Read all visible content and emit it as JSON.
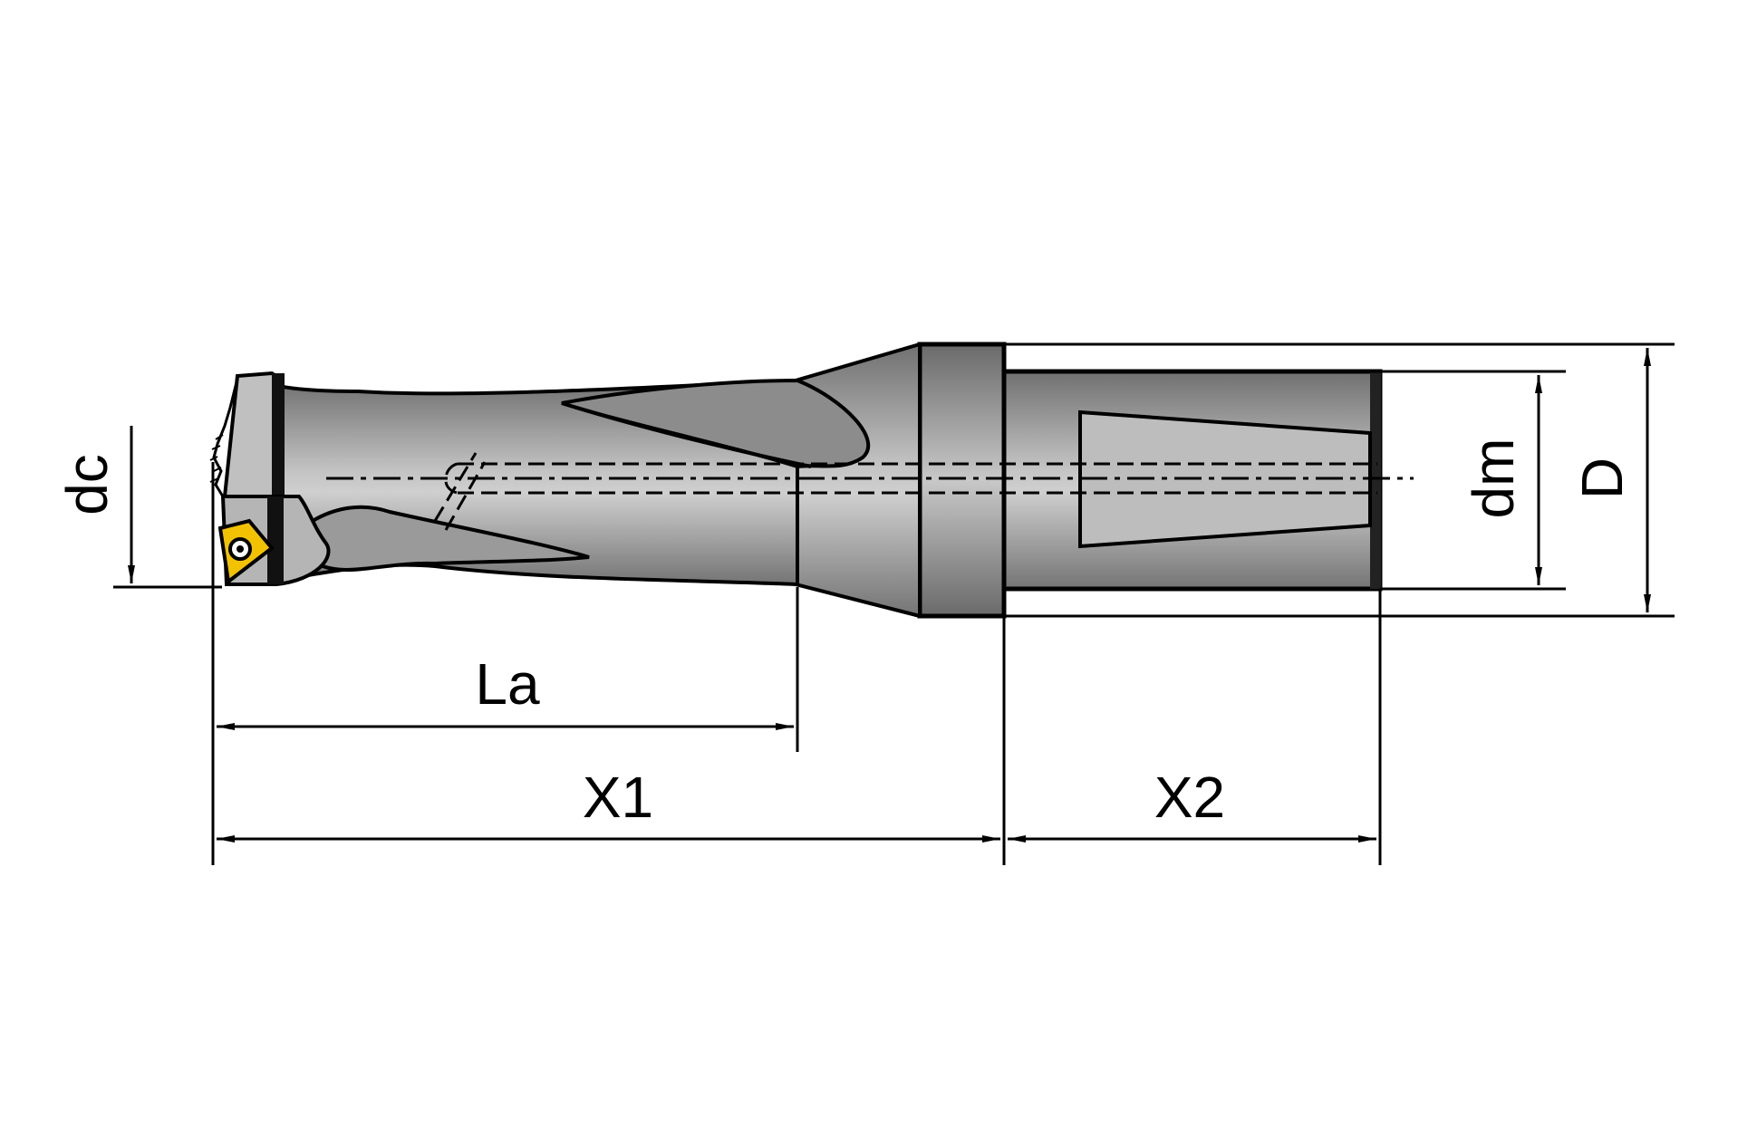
{
  "diagram": {
    "labels": {
      "dc": "dc",
      "la": "La",
      "x1": "X1",
      "x2": "X2",
      "dm": "dm",
      "d": "D"
    },
    "colors": {
      "outline": "#000000",
      "body_light": "#c9c9c9",
      "body_dark": "#6f6f6f",
      "insert": "#f2c200",
      "background": "#ffffff"
    }
  }
}
